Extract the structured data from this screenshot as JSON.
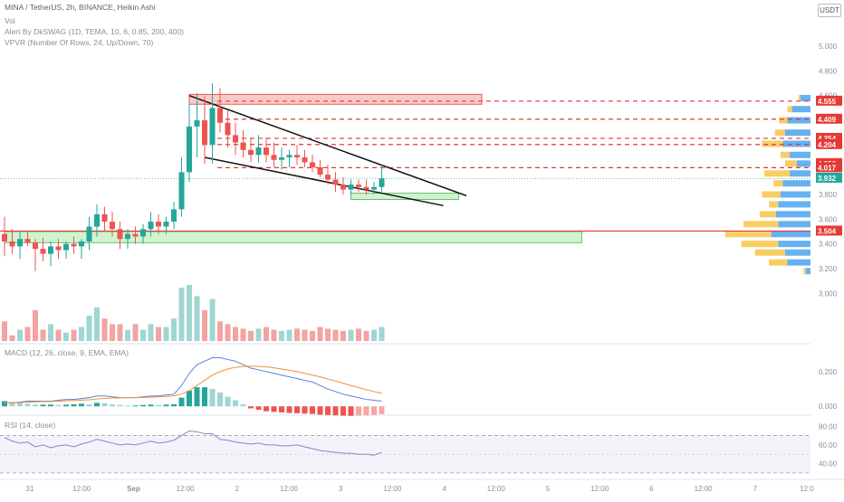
{
  "header": {
    "symbol_line": "MINA / TetherUS, 2h, BINANCE, Heikin Ashi",
    "vol_label": "Vol",
    "alert_line": "Alert By DkSWAG (1D, TEMA, 10, 6, 0.85, 200, 400)",
    "vpvr_line": "VPVR (Number Of Rows, 24, Up/Down, 70)",
    "macd_line": "MACD (12, 26, close, 9, EMA, EMA)",
    "rsi_line": "RSI (14, close)",
    "currency": "USDT"
  },
  "colors": {
    "up": "#26a69a",
    "down": "#ef5350",
    "up_vol": "#9fd6d1",
    "down_vol": "#f3a3a1",
    "resistance": "#e53935",
    "support_zone": "#8ee08e",
    "macd": "#5b7fe0",
    "signal": "#f0913b",
    "rsi": "#8a84c8",
    "vpvr_up": "#4aa3f0",
    "vpvr_down": "#f7c548"
  },
  "chart_data": [
    {
      "type": "candlestick",
      "title": "MINA / TetherUS, 2h, BINANCE, Heikin Ashi",
      "y_axis": {
        "ticks": [
          5.0,
          4.8,
          4.6,
          3.8,
          3.6,
          3.4,
          3.2,
          3.0
        ],
        "tick_labels": [
          "5.000",
          "4.800",
          "4.600",
          "3.800",
          "3.600",
          "3.400",
          "3.200",
          "3.000"
        ],
        "range": [
          2.9,
          5.3
        ]
      },
      "x_axis": {
        "tick_labels": [
          "31",
          "12:00",
          "Sep",
          "12:00",
          "2",
          "12:00",
          "3",
          "12:00",
          "4",
          "12:00",
          "5",
          "12:00",
          "6",
          "12:00",
          "7",
          "12:0"
        ]
      },
      "ohlc": [
        [
          3.48,
          3.62,
          3.3,
          3.42
        ],
        [
          3.42,
          3.52,
          3.32,
          3.38
        ],
        [
          3.38,
          3.5,
          3.28,
          3.44
        ],
        [
          3.44,
          3.5,
          3.38,
          3.41
        ],
        [
          3.41,
          3.44,
          3.18,
          3.36
        ],
        [
          3.36,
          3.45,
          3.26,
          3.32
        ],
        [
          3.32,
          3.42,
          3.22,
          3.38
        ],
        [
          3.38,
          3.44,
          3.28,
          3.35
        ],
        [
          3.35,
          3.42,
          3.28,
          3.4
        ],
        [
          3.4,
          3.46,
          3.32,
          3.38
        ],
        [
          3.38,
          3.44,
          3.28,
          3.42
        ],
        [
          3.42,
          3.62,
          3.35,
          3.54
        ],
        [
          3.54,
          3.72,
          3.46,
          3.64
        ],
        [
          3.64,
          3.7,
          3.5,
          3.58
        ],
        [
          3.58,
          3.66,
          3.46,
          3.52
        ],
        [
          3.52,
          3.58,
          3.36,
          3.44
        ],
        [
          3.44,
          3.52,
          3.36,
          3.48
        ],
        [
          3.48,
          3.54,
          3.4,
          3.46
        ],
        [
          3.46,
          3.56,
          3.4,
          3.52
        ],
        [
          3.52,
          3.66,
          3.46,
          3.58
        ],
        [
          3.58,
          3.64,
          3.48,
          3.54
        ],
        [
          3.54,
          3.62,
          3.48,
          3.58
        ],
        [
          3.58,
          3.74,
          3.52,
          3.68
        ],
        [
          3.68,
          4.1,
          3.62,
          3.98
        ],
        [
          3.98,
          4.55,
          3.9,
          4.35
        ],
        [
          4.35,
          4.62,
          4.1,
          4.4
        ],
        [
          4.4,
          4.6,
          4.05,
          4.2
        ],
        [
          4.2,
          4.7,
          4.05,
          4.5
        ],
        [
          4.5,
          4.66,
          4.3,
          4.38
        ],
        [
          4.38,
          4.48,
          4.18,
          4.28
        ],
        [
          4.28,
          4.38,
          4.12,
          4.22
        ],
        [
          4.22,
          4.32,
          4.1,
          4.16
        ],
        [
          4.16,
          4.26,
          4.06,
          4.12
        ],
        [
          4.12,
          4.28,
          4.06,
          4.18
        ],
        [
          4.18,
          4.26,
          4.06,
          4.12
        ],
        [
          4.12,
          4.22,
          4.02,
          4.08
        ],
        [
          4.08,
          4.18,
          4.0,
          4.1
        ],
        [
          4.1,
          4.16,
          4.02,
          4.12
        ],
        [
          4.12,
          4.2,
          4.04,
          4.1
        ],
        [
          4.1,
          4.16,
          4.02,
          4.06
        ],
        [
          4.06,
          4.12,
          3.98,
          4.02
        ],
        [
          4.02,
          4.08,
          3.94,
          3.96
        ],
        [
          3.96,
          4.04,
          3.88,
          3.92
        ],
        [
          3.92,
          3.98,
          3.82,
          3.88
        ],
        [
          3.88,
          3.94,
          3.8,
          3.84
        ],
        [
          3.84,
          3.92,
          3.8,
          3.88
        ],
        [
          3.88,
          3.92,
          3.82,
          3.86
        ],
        [
          3.86,
          3.92,
          3.8,
          3.84
        ],
        [
          3.84,
          3.9,
          3.8,
          3.86
        ],
        [
          3.86,
          4.04,
          3.82,
          3.93
        ]
      ],
      "volume": [
        0.35,
        0.1,
        0.2,
        0.25,
        0.55,
        0.2,
        0.3,
        0.2,
        0.15,
        0.2,
        0.25,
        0.45,
        0.6,
        0.4,
        0.3,
        0.3,
        0.2,
        0.3,
        0.2,
        0.3,
        0.25,
        0.25,
        0.4,
        0.95,
        1.0,
        0.8,
        0.55,
        0.75,
        0.35,
        0.3,
        0.25,
        0.22,
        0.18,
        0.22,
        0.25,
        0.2,
        0.18,
        0.2,
        0.22,
        0.2,
        0.18,
        0.25,
        0.22,
        0.2,
        0.18,
        0.2,
        0.22,
        0.18,
        0.2,
        0.25
      ],
      "price_labels": [
        {
          "label": "4.555",
          "value": 4.555,
          "color": "#e53935"
        },
        {
          "label": "4.409",
          "value": 4.409,
          "color": "#e53935"
        },
        {
          "label": "4.254",
          "value": 4.254,
          "color": "#e53935"
        },
        {
          "label": "4.204",
          "value": 4.204,
          "color": "#e53935"
        },
        {
          "label": "4.050",
          "value": 4.05,
          "color": "#e53935"
        },
        {
          "label": "4.017",
          "value": 4.017,
          "color": "#e53935"
        },
        {
          "label": "3.932",
          "value": 3.932,
          "color": "#26a69a"
        },
        {
          "label": "3.504",
          "value": 3.504,
          "color": "#e53935"
        }
      ],
      "resistance_levels": [
        4.555,
        4.409,
        4.254,
        4.204,
        4.017
      ],
      "support_level": 3.504,
      "zones": [
        {
          "kind": "resistance",
          "from_bar": 24,
          "to_bar": 62,
          "low": 4.53,
          "high": 4.61
        },
        {
          "kind": "support",
          "from_bar": 45,
          "to_bar": 59,
          "low": 3.76,
          "high": 3.81
        },
        {
          "kind": "support",
          "from_bar": 0,
          "to_bar": 75,
          "low": 3.41,
          "high": 3.5
        }
      ],
      "trendlines": [
        {
          "from": [
            24,
            4.6
          ],
          "to": [
            60,
            3.79
          ]
        },
        {
          "from": [
            26,
            4.1
          ],
          "to": [
            57,
            3.71
          ]
        }
      ],
      "vpvr": [
        {
          "price": 4.58,
          "up": 0.22,
          "down": 0.04
        },
        {
          "price": 4.49,
          "up": 0.4,
          "down": 0.1
        },
        {
          "price": 4.4,
          "up": 0.5,
          "down": 0.18
        },
        {
          "price": 4.3,
          "up": 0.55,
          "down": 0.22
        },
        {
          "price": 4.21,
          "up": 0.6,
          "down": 0.45
        },
        {
          "price": 4.12,
          "up": 0.45,
          "down": 0.2
        },
        {
          "price": 4.05,
          "up": 0.3,
          "down": 0.25
        },
        {
          "price": 3.97,
          "up": 0.45,
          "down": 0.55
        },
        {
          "price": 3.89,
          "up": 0.6,
          "down": 0.2
        },
        {
          "price": 3.8,
          "up": 0.65,
          "down": 0.4
        },
        {
          "price": 3.72,
          "up": 0.7,
          "down": 0.2
        },
        {
          "price": 3.64,
          "up": 0.75,
          "down": 0.35
        },
        {
          "price": 3.56,
          "up": 0.7,
          "down": 0.75
        },
        {
          "price": 3.48,
          "up": 0.85,
          "down": 1.0
        },
        {
          "price": 3.4,
          "up": 0.7,
          "down": 0.8
        },
        {
          "price": 3.33,
          "up": 0.55,
          "down": 0.65
        },
        {
          "price": 3.25,
          "up": 0.5,
          "down": 0.4
        },
        {
          "price": 3.18,
          "up": 0.1,
          "down": 0.05
        }
      ]
    },
    {
      "type": "line",
      "title": "MACD (12, 26, close, 9, EMA, EMA)",
      "y_axis": {
        "tick_labels": [
          "0.200",
          "0.000"
        ],
        "ticks": [
          0.2,
          0.0
        ],
        "range": [
          -0.03,
          0.34
        ]
      },
      "series": [
        {
          "name": "MACD",
          "values": [
            0.02,
            0.02,
            0.025,
            0.03,
            0.03,
            0.03,
            0.03,
            0.035,
            0.04,
            0.04,
            0.045,
            0.05,
            0.06,
            0.06,
            0.055,
            0.05,
            0.05,
            0.05,
            0.055,
            0.06,
            0.06,
            0.065,
            0.07,
            0.12,
            0.19,
            0.24,
            0.26,
            0.28,
            0.28,
            0.27,
            0.26,
            0.24,
            0.22,
            0.21,
            0.2,
            0.19,
            0.18,
            0.17,
            0.16,
            0.15,
            0.14,
            0.12,
            0.1,
            0.085,
            0.07,
            0.06,
            0.05,
            0.04,
            0.035,
            0.03
          ]
        },
        {
          "name": "Signal",
          "values": [
            0.02,
            0.02,
            0.022,
            0.024,
            0.026,
            0.027,
            0.028,
            0.03,
            0.032,
            0.034,
            0.036,
            0.038,
            0.042,
            0.046,
            0.048,
            0.049,
            0.05,
            0.05,
            0.051,
            0.053,
            0.055,
            0.057,
            0.06,
            0.07,
            0.09,
            0.12,
            0.15,
            0.18,
            0.2,
            0.215,
            0.225,
            0.23,
            0.232,
            0.23,
            0.228,
            0.222,
            0.215,
            0.208,
            0.2,
            0.19,
            0.18,
            0.17,
            0.158,
            0.146,
            0.133,
            0.12,
            0.108,
            0.096,
            0.085,
            0.075
          ]
        }
      ],
      "histogram": [
        0.03,
        0.025,
        0.02,
        0.015,
        0.01,
        0.01,
        0.01,
        0.008,
        0.01,
        0.012,
        0.015,
        0.012,
        0.02,
        0.018,
        0.012,
        0.008,
        0.005,
        0.005,
        0.008,
        0.01,
        0.008,
        0.01,
        0.012,
        0.05,
        0.09,
        0.11,
        0.11,
        0.1,
        0.08,
        0.055,
        0.035,
        0.012,
        -0.012,
        -0.02,
        -0.028,
        -0.032,
        -0.035,
        -0.038,
        -0.04,
        -0.042,
        -0.044,
        -0.048,
        -0.05,
        -0.052,
        -0.054,
        -0.055,
        -0.054,
        -0.052,
        -0.05,
        -0.045
      ]
    },
    {
      "type": "line",
      "title": "RSI (14, close)",
      "y_axis": {
        "tick_labels": [
          "80.00",
          "60.00",
          "40.00"
        ],
        "ticks": [
          80,
          60,
          40
        ],
        "range": [
          25,
          88
        ]
      },
      "band": [
        30,
        70
      ],
      "middle": 50,
      "series": [
        {
          "name": "RSI",
          "values": [
            68,
            64,
            62,
            63,
            58,
            60,
            57,
            59,
            60,
            58,
            61,
            63,
            66,
            64,
            62,
            60,
            61,
            60,
            62,
            64,
            62,
            63,
            65,
            70,
            75,
            74,
            72,
            72,
            66,
            65,
            63,
            62,
            61,
            62,
            60,
            60,
            59,
            59,
            60,
            58,
            56,
            54,
            53,
            52,
            51,
            51,
            50,
            50,
            49,
            52
          ]
        }
      ]
    }
  ]
}
